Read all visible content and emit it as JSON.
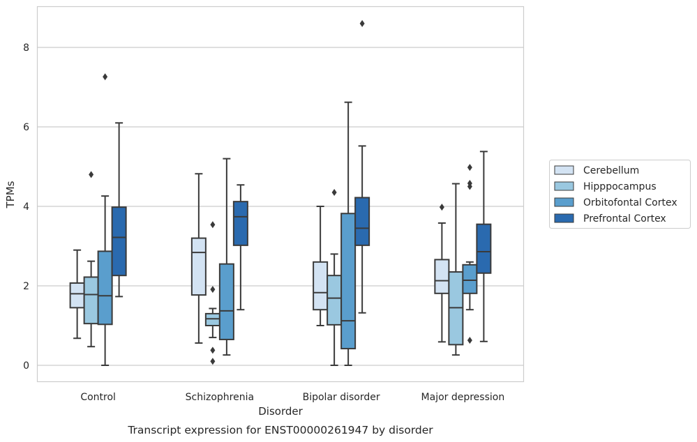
{
  "chart_data": {
    "type": "box",
    "title": "",
    "caption": "Transcript expression for ENST00000261947 by disorder",
    "xlabel": "Disorder",
    "ylabel": "TPMs",
    "ylim": [
      -0.4,
      9.1
    ],
    "yticks": [
      0,
      2,
      4,
      6,
      8
    ],
    "grid": "horizontal",
    "legend_position": "right",
    "categories": [
      "Control",
      "Schizophrenia",
      "Bipolar disorder",
      "Major depression"
    ],
    "series": [
      {
        "name": "Cerebellum",
        "color": "#d3e3f3",
        "boxes": [
          {
            "whisker_low": 0.68,
            "q1": 1.45,
            "median": 1.8,
            "q3": 2.07,
            "whisker_high": 2.9,
            "outliers": []
          },
          {
            "whisker_low": 0.56,
            "q1": 1.77,
            "median": 2.84,
            "q3": 3.2,
            "whisker_high": 4.82,
            "outliers": []
          },
          {
            "whisker_low": 1.0,
            "q1": 1.4,
            "median": 1.83,
            "q3": 2.6,
            "whisker_high": 4.0,
            "outliers": []
          },
          {
            "whisker_low": 0.59,
            "q1": 1.81,
            "median": 2.13,
            "q3": 2.66,
            "whisker_high": 3.58,
            "outliers": [
              3.98
            ]
          }
        ]
      },
      {
        "name": "Hipppocampus",
        "color": "#9ac8e0",
        "boxes": [
          {
            "whisker_low": 0.47,
            "q1": 1.05,
            "median": 1.78,
            "q3": 2.22,
            "whisker_high": 2.62,
            "outliers": [
              4.8
            ]
          },
          {
            "whisker_low": 0.7,
            "q1": 1.0,
            "median": 1.17,
            "q3": 1.3,
            "whisker_high": 1.43,
            "outliers": [
              3.54,
              1.91,
              0.38,
              0.1
            ]
          },
          {
            "whisker_low": 0.0,
            "q1": 1.02,
            "median": 1.69,
            "q3": 2.26,
            "whisker_high": 2.8,
            "outliers": [
              4.35
            ]
          },
          {
            "whisker_low": 0.26,
            "q1": 0.52,
            "median": 1.45,
            "q3": 2.35,
            "whisker_high": 4.57,
            "outliers": []
          }
        ]
      },
      {
        "name": "Orbitofontal Cortex",
        "color": "#5a9ecd",
        "boxes": [
          {
            "whisker_low": 0.0,
            "q1": 1.03,
            "median": 1.75,
            "q3": 2.87,
            "whisker_high": 4.26,
            "outliers": [
              7.26
            ]
          },
          {
            "whisker_low": 0.26,
            "q1": 0.65,
            "median": 1.37,
            "q3": 2.55,
            "whisker_high": 5.2,
            "outliers": []
          },
          {
            "whisker_low": 0.0,
            "q1": 0.42,
            "median": 1.12,
            "q3": 3.82,
            "whisker_high": 6.62,
            "outliers": []
          },
          {
            "whisker_low": 1.4,
            "q1": 1.81,
            "median": 2.14,
            "q3": 2.53,
            "whisker_high": 2.6,
            "outliers": [
              4.98,
              4.58,
              4.5,
              0.63
            ]
          }
        ]
      },
      {
        "name": "Prefrontal Cortex",
        "color": "#2a6aaf",
        "boxes": [
          {
            "whisker_low": 1.73,
            "q1": 2.26,
            "median": 3.22,
            "q3": 3.98,
            "whisker_high": 6.1,
            "outliers": []
          },
          {
            "whisker_low": 1.4,
            "q1": 3.02,
            "median": 3.74,
            "q3": 4.12,
            "whisker_high": 4.54,
            "outliers": []
          },
          {
            "whisker_low": 1.32,
            "q1": 3.02,
            "median": 3.45,
            "q3": 4.22,
            "whisker_high": 5.52,
            "outliers": [
              8.6
            ]
          },
          {
            "whisker_low": 0.6,
            "q1": 2.32,
            "median": 2.86,
            "q3": 3.55,
            "whisker_high": 5.38,
            "outliers": []
          }
        ]
      }
    ]
  }
}
